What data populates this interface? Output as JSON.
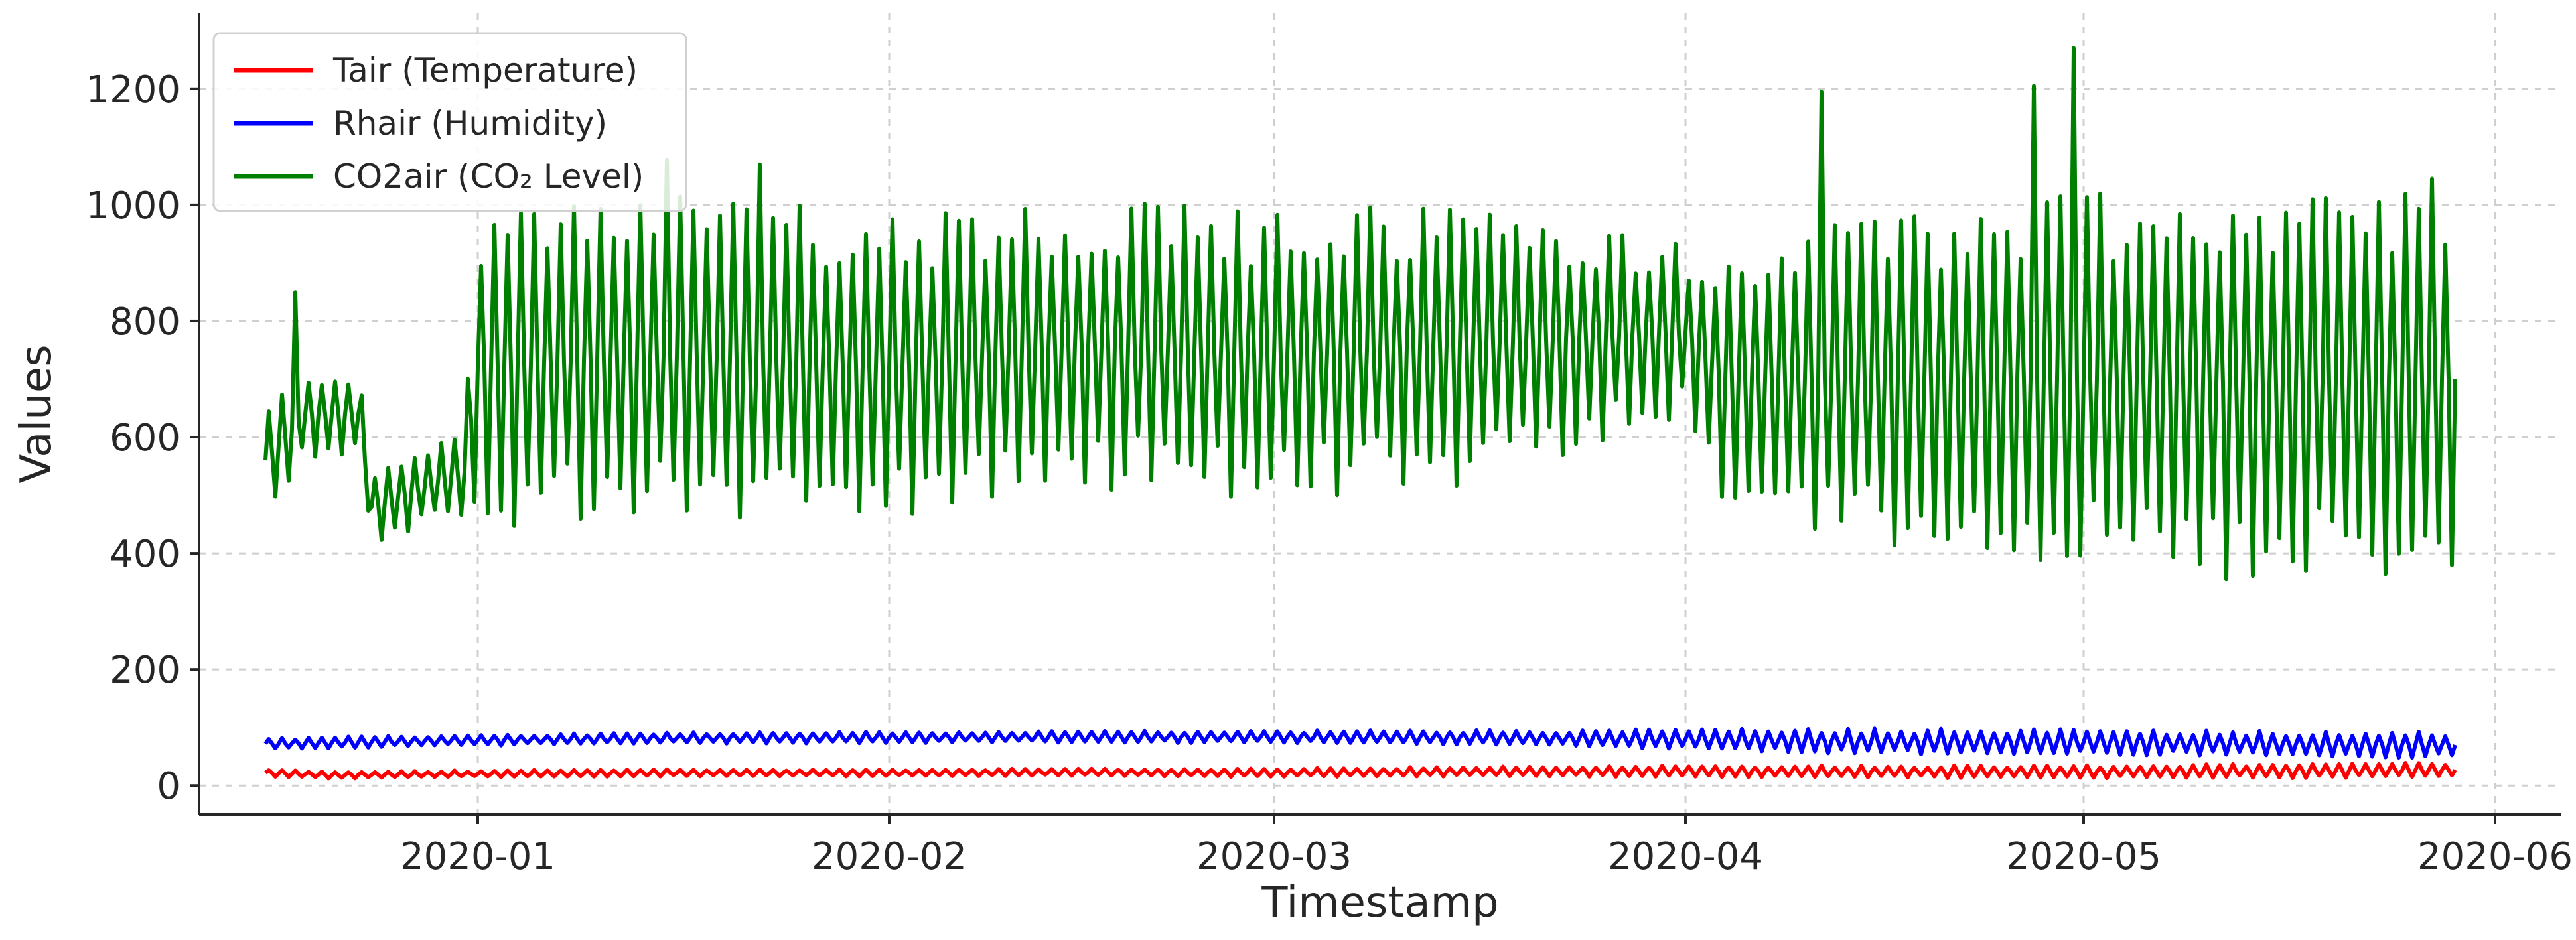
{
  "chart_data": {
    "type": "line",
    "title": "",
    "xlabel": "Timestamp",
    "ylabel": "Values",
    "xlim": [
      "2019-12-11",
      "2020-06-06"
    ],
    "ylim": [
      -50,
      1330
    ],
    "x_ticks": [
      "2020-01",
      "2020-02",
      "2020-03",
      "2020-04",
      "2020-05",
      "2020-06"
    ],
    "x_tick_dates": [
      "2020-01-01",
      "2020-02-01",
      "2020-03-01",
      "2020-04-01",
      "2020-05-01",
      "2020-06-01"
    ],
    "y_ticks": [
      0,
      200,
      400,
      600,
      800,
      1000,
      1200
    ],
    "grid": true,
    "legend_position": "top-left",
    "series": [
      {
        "name": "Tair (Temperature)",
        "color": "#ff0000",
        "points": [
          [
            "2019-12-16",
            22
          ],
          [
            "2019-12-21",
            18
          ],
          [
            "2019-12-31",
            20
          ],
          [
            "2020-01-15",
            22
          ],
          [
            "2020-02-01",
            22
          ],
          [
            "2020-02-15",
            23
          ],
          [
            "2020-03-01",
            22
          ],
          [
            "2020-03-15",
            24
          ],
          [
            "2020-04-01",
            25
          ],
          [
            "2020-04-15",
            24
          ],
          [
            "2020-05-01",
            24
          ],
          [
            "2020-05-15",
            25
          ],
          [
            "2020-05-29",
            27
          ]
        ],
        "daily_amplitude": [
          5,
          5,
          5,
          5,
          5,
          5,
          6,
          7,
          8,
          9,
          9,
          10,
          11
        ]
      },
      {
        "name": "Rhair (Humidity)",
        "color": "#0000ff",
        "points": [
          [
            "2019-12-16",
            72
          ],
          [
            "2019-12-21",
            74
          ],
          [
            "2019-12-31",
            78
          ],
          [
            "2020-01-15",
            82
          ],
          [
            "2020-02-01",
            83
          ],
          [
            "2020-02-15",
            84
          ],
          [
            "2020-03-01",
            84
          ],
          [
            "2020-03-15",
            83
          ],
          [
            "2020-04-01",
            80
          ],
          [
            "2020-04-15",
            76
          ],
          [
            "2020-05-01",
            75
          ],
          [
            "2020-05-15",
            72
          ],
          [
            "2020-05-29",
            70
          ]
        ],
        "daily_amplitude": [
          8,
          8,
          8,
          8,
          8,
          8,
          9,
          10,
          14,
          18,
          18,
          18,
          18
        ]
      },
      {
        "name": "CO2air (CO₂ Level)",
        "color": "#008000",
        "points": [
          [
            "2019-12-16",
            560
          ],
          [
            "2019-12-19",
            640
          ],
          [
            "2019-12-23",
            640
          ],
          [
            "2019-12-24",
            480
          ],
          [
            "2019-12-31",
            540
          ],
          [
            "2020-01-01",
            720
          ],
          [
            "2020-01-15",
            740
          ],
          [
            "2020-02-01",
            720
          ],
          [
            "2020-02-15",
            760
          ],
          [
            "2020-03-01",
            740
          ],
          [
            "2020-03-15",
            760
          ],
          [
            "2020-04-01",
            780
          ],
          [
            "2020-04-04",
            700
          ],
          [
            "2020-04-15",
            700
          ],
          [
            "2020-05-01",
            700
          ],
          [
            "2020-05-15",
            690
          ],
          [
            "2020-05-29",
            700
          ]
        ],
        "daily_amplitude": [
          100,
          60,
          60,
          60,
          60,
          230,
          230,
          220,
          200,
          200,
          200,
          120,
          180,
          230,
          270,
          270,
          270
        ],
        "peaks": [
          [
            "2019-12-18",
            850
          ],
          [
            "2020-01-15",
            1078
          ],
          [
            "2020-01-22",
            1070
          ],
          [
            "2020-04-11",
            1195
          ],
          [
            "2020-04-27",
            1205
          ],
          [
            "2020-04-30",
            1270
          ],
          [
            "2020-05-27",
            1045
          ]
        ]
      }
    ]
  }
}
